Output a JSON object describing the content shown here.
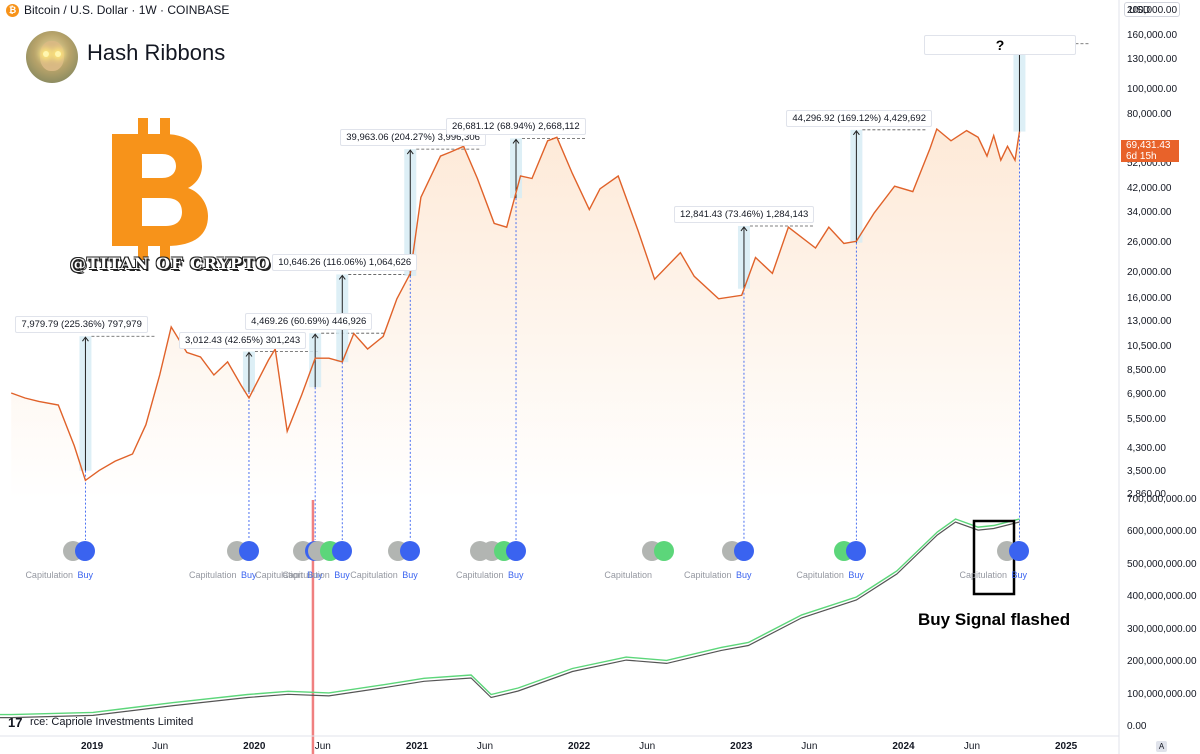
{
  "header": {
    "symbol": "Bitcoin / U.S. Dollar · 1W · COINBASE",
    "coin_glyph": "₿",
    "currency": "USD",
    "title": "Hash Ribbons",
    "handle": "@TITAN OF CRYPTO",
    "source": "rce: Capriole Investments Limited",
    "tv_logo": "17",
    "auto_scale": "A"
  },
  "colors": {
    "price_line": "#e0622a",
    "price_fill": "#fde7d3",
    "gain_box": "#d7ecf5",
    "buy_dot": "#3a63f0",
    "capitulation_dot": "#b2b5b2",
    "green_dot": "#5cd67a",
    "hash_fast": "#5cd67a",
    "hash_slow": "#555555",
    "hash_red": "#f08080",
    "red_vline": "#f08080",
    "btc_logo": "#f7931a"
  },
  "chart_data": {
    "type": "line",
    "x_axis": {
      "ticks": [
        "2019",
        "Jun",
        "2020",
        "Jun",
        "2021",
        "Jun",
        "2022",
        "Jun",
        "2023",
        "Jun",
        "2024",
        "Jun",
        "2025"
      ]
    },
    "price_axis": {
      "scale": "log",
      "tick_labels": [
        "200,000.00",
        "160,000.00",
        "130,000.00",
        "100,000.00",
        "80,000.00",
        "52,000.00",
        "42,000.00",
        "34,000.00",
        "26,000.00",
        "20,000.00",
        "16,000.00",
        "13,000.00",
        "10,500.00",
        "8,500.00",
        "6,900.00",
        "5,500.00",
        "4,300.00",
        "3,500.00",
        "2,860.00"
      ],
      "last_price": "69,431.43",
      "countdown": "6d 15h"
    },
    "hashrate_axis": {
      "tick_labels": [
        "700,000,000.00",
        "600,000,000.00",
        "500,000,000.00",
        "400,000,000.00",
        "300,000,000.00",
        "200,000,000.00",
        "100,000,000.00",
        "0.00"
      ]
    },
    "price_series": [
      [
        "2018-07-01",
        7000
      ],
      [
        "2018-08-01",
        6700
      ],
      [
        "2018-09-01",
        6500
      ],
      [
        "2018-10-15",
        6300
      ],
      [
        "2018-11-20",
        4400
      ],
      [
        "2018-12-15",
        3250
      ],
      [
        "2019-01-15",
        3550
      ],
      [
        "2019-02-20",
        3850
      ],
      [
        "2019-03-31",
        4100
      ],
      [
        "2019-04-30",
        5300
      ],
      [
        "2019-05-31",
        8200
      ],
      [
        "2019-06-26",
        12500
      ],
      [
        "2019-07-31",
        10000
      ],
      [
        "2019-08-31",
        9600
      ],
      [
        "2019-09-30",
        8200
      ],
      [
        "2019-10-31",
        9200
      ],
      [
        "2019-11-30",
        7500
      ],
      [
        "2019-12-18",
        6700
      ],
      [
        "2020-01-31",
        9350
      ],
      [
        "2020-02-15",
        10300
      ],
      [
        "2020-03-13",
        5000
      ],
      [
        "2020-04-15",
        6900
      ],
      [
        "2020-05-15",
        9500
      ],
      [
        "2020-06-15",
        9500
      ],
      [
        "2020-07-15",
        9200
      ],
      [
        "2020-08-10",
        11800
      ],
      [
        "2020-09-10",
        10300
      ],
      [
        "2020-10-15",
        11500
      ],
      [
        "2020-11-15",
        16000
      ],
      [
        "2020-12-15",
        20000
      ],
      [
        "2021-01-08",
        39000
      ],
      [
        "2021-02-21",
        56000
      ],
      [
        "2021-03-15",
        58000
      ],
      [
        "2021-04-14",
        61000
      ],
      [
        "2021-05-15",
        46000
      ],
      [
        "2021-06-22",
        31000
      ],
      [
        "2021-07-20",
        30000
      ],
      [
        "2021-08-20",
        47000
      ],
      [
        "2021-09-15",
        46000
      ],
      [
        "2021-10-20",
        64000
      ],
      [
        "2021-11-10",
        66000
      ],
      [
        "2021-12-15",
        48000
      ],
      [
        "2022-01-22",
        35000
      ],
      [
        "2022-02-15",
        42000
      ],
      [
        "2022-03-28",
        47000
      ],
      [
        "2022-05-12",
        29000
      ],
      [
        "2022-06-18",
        19000
      ],
      [
        "2022-08-15",
        24000
      ],
      [
        "2022-09-15",
        19500
      ],
      [
        "2022-11-09",
        16000
      ],
      [
        "2022-12-31",
        16500
      ],
      [
        "2023-01-31",
        23000
      ],
      [
        "2023-03-10",
        20000
      ],
      [
        "2023-04-15",
        30000
      ],
      [
        "2023-06-15",
        25000
      ],
      [
        "2023-07-15",
        30000
      ],
      [
        "2023-08-18",
        26000
      ],
      [
        "2023-09-15",
        26500
      ],
      [
        "2023-10-25",
        34000
      ],
      [
        "2023-12-10",
        43000
      ],
      [
        "2024-01-20",
        41000
      ],
      [
        "2024-02-28",
        60000
      ],
      [
        "2024-03-14",
        71000
      ],
      [
        "2024-04-15",
        64000
      ],
      [
        "2024-05-20",
        70000
      ],
      [
        "2024-06-15",
        66000
      ],
      [
        "2024-07-05",
        56000
      ],
      [
        "2024-07-20",
        67000
      ],
      [
        "2024-08-05",
        54000
      ],
      [
        "2024-08-20",
        61000
      ],
      [
        "2024-09-06",
        54000
      ],
      [
        "2024-09-16",
        69431.43
      ]
    ],
    "gain_annotations": [
      {
        "label": "7,979.79 (225.36%) 797,979",
        "start": "2018-12-15",
        "from": 3541,
        "to": 11521
      },
      {
        "label": "3,012.43 (42.65%) 301,243",
        "start": "2019-12-18",
        "from": 7063,
        "to": 10075
      },
      {
        "label": "4,469.26 (60.69%) 446,926",
        "start": "2020-05-15",
        "from": 7364,
        "to": 11833
      },
      {
        "label": "10,646.26 (116.06%) 1,064,626",
        "start": "2020-07-15",
        "from": 9173,
        "to": 19819
      },
      {
        "label": "39,963.06 (204.27%) 3,996,306",
        "start": "2020-12-15",
        "from": 19564,
        "to": 59527
      },
      {
        "label": "26,681.12 (68.94%) 2,668,112",
        "start": "2021-08-10",
        "from": 38702,
        "to": 65383
      },
      {
        "label": "12,841.43 (73.46%) 1,284,143",
        "start": "2023-01-05",
        "from": 17480,
        "to": 30321
      },
      {
        "label": "44,296.92 (169.12%) 4,429,692",
        "start": "2023-09-15",
        "from": 26193,
        "to": 70490
      },
      {
        "label": "?",
        "start": "2024-09-16",
        "from": 69431.43,
        "to": 150000
      }
    ],
    "signals": [
      {
        "date": "2018-12-15",
        "dots": [
          "grey",
          "blue"
        ],
        "labels": [
          "Capitulation",
          "Buy"
        ]
      },
      {
        "date": "2019-12-18",
        "dots": [
          "grey",
          "blue"
        ],
        "labels": [
          "Capitulation",
          "Buy"
        ]
      },
      {
        "date": "2020-05-15",
        "dots": [
          "grey",
          "blue"
        ],
        "labels": [
          "Capitulation",
          "Buy"
        ]
      },
      {
        "date": "2020-07-15",
        "dots": [
          "grey",
          "green",
          "blue"
        ],
        "labels": [
          "Capitulation",
          "Buy"
        ]
      },
      {
        "date": "2020-12-15",
        "dots": [
          "grey",
          "blue"
        ],
        "labels": [
          "Capitulation",
          "Buy"
        ]
      },
      {
        "date": "2021-08-10",
        "dots": [
          "grey",
          "grey",
          "green",
          "blue"
        ],
        "labels": [
          "Capitulation",
          "Buy"
        ]
      },
      {
        "date": "2022-07-10",
        "dots": [
          "grey",
          "green"
        ],
        "labels": [
          "Capitulation"
        ]
      },
      {
        "date": "2023-01-05",
        "dots": [
          "grey",
          "blue"
        ],
        "labels": [
          "Capitulation",
          "Buy"
        ]
      },
      {
        "date": "2023-09-15",
        "dots": [
          "green",
          "blue"
        ],
        "labels": [
          "Capitulation",
          "Buy"
        ]
      },
      {
        "date": "2024-09-16",
        "dots": [
          "grey",
          "blue"
        ],
        "labels": [
          "Capitulation",
          "Buy"
        ]
      }
    ],
    "hashrate_series": [
      [
        "2018-07-01",
        38
      ],
      [
        "2019-01-01",
        45
      ],
      [
        "2019-07-01",
        75
      ],
      [
        "2019-12-15",
        100
      ],
      [
        "2020-03-15",
        110
      ],
      [
        "2020-06-15",
        105
      ],
      [
        "2020-10-15",
        130
      ],
      [
        "2021-01-15",
        150
      ],
      [
        "2021-05-01",
        160
      ],
      [
        "2021-06-15",
        100
      ],
      [
        "2021-08-15",
        120
      ],
      [
        "2021-12-15",
        180
      ],
      [
        "2022-04-15",
        215
      ],
      [
        "2022-07-15",
        205
      ],
      [
        "2022-11-15",
        245
      ],
      [
        "2023-01-15",
        260
      ],
      [
        "2023-05-15",
        345
      ],
      [
        "2023-09-15",
        400
      ],
      [
        "2023-12-15",
        480
      ],
      [
        "2024-03-15",
        600
      ],
      [
        "2024-04-25",
        640
      ],
      [
        "2024-06-15",
        615
      ],
      [
        "2024-07-20",
        620
      ],
      [
        "2024-09-16",
        640
      ]
    ],
    "red_marker_date": "2020-05-10"
  },
  "buy_signal_text": "Buy Signal flashed"
}
